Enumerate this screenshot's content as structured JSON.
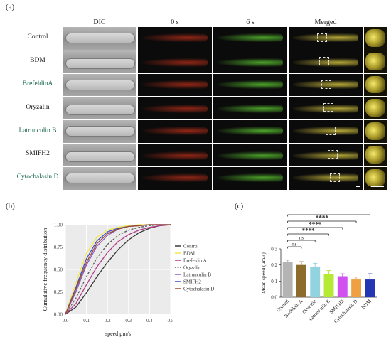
{
  "panels": {
    "a": "(a)",
    "b": "(b)",
    "c": "(c)"
  },
  "image_grid": {
    "columns": [
      "DIC",
      "0 s",
      "6 s",
      "Merged",
      ""
    ],
    "rows": [
      "Control",
      "BDM",
      "BrefeldinA",
      "Oryzalin",
      "Latrunculin B",
      "SMIFH2",
      "Cytochalasin D"
    ],
    "colors": {
      "zero_s": "#c0301a",
      "six_s": "#5ac030",
      "merged": "#d6c640",
      "row_label_accent": "#1d6b55"
    }
  },
  "chart_data": [
    {
      "type": "line",
      "panel": "(b)",
      "xlabel": "speed μm/s",
      "ylabel": "Cumulative frequency distribution",
      "xticks": [
        "0.0",
        "0.1",
        "0.2",
        "0.3",
        "0.4",
        "0.5"
      ],
      "yticks": [
        "0.00",
        "0.25",
        "0.50",
        "0.75",
        "1.00"
      ],
      "xlim": [
        0,
        0.5
      ],
      "ylim": [
        0,
        1
      ],
      "grid": true,
      "legend_position": "right",
      "x": [
        0,
        0.05,
        0.1,
        0.15,
        0.2,
        0.25,
        0.3,
        0.35,
        0.4,
        0.45,
        0.5
      ],
      "series": [
        {
          "name": "Control",
          "color": "#3a3a3a",
          "values": [
            0,
            0.08,
            0.24,
            0.42,
            0.58,
            0.72,
            0.83,
            0.91,
            0.96,
            0.99,
            1
          ]
        },
        {
          "name": "BDM",
          "color": "#f2e64a",
          "values": [
            0,
            0.35,
            0.68,
            0.86,
            0.94,
            0.97,
            0.99,
            1,
            1,
            1,
            1
          ]
        },
        {
          "name": "Brefeldin A",
          "color": "#b23a8c",
          "values": [
            0,
            0.12,
            0.33,
            0.53,
            0.69,
            0.81,
            0.89,
            0.94,
            0.97,
            0.99,
            1
          ]
        },
        {
          "name": "Oryzalin",
          "color": "#5a5a5a",
          "values": [
            0,
            0.18,
            0.42,
            0.63,
            0.78,
            0.88,
            0.94,
            0.97,
            0.99,
            1,
            1
          ]
        },
        {
          "name": "Latrunculin B",
          "color": "#8a5cc7",
          "values": [
            0,
            0.25,
            0.55,
            0.76,
            0.88,
            0.95,
            0.98,
            0.99,
            1,
            1,
            1
          ]
        },
        {
          "name": "SMIFH2",
          "color": "#4050c0",
          "values": [
            0,
            0.3,
            0.62,
            0.82,
            0.92,
            0.96,
            0.98,
            0.99,
            1,
            1,
            1
          ]
        },
        {
          "name": "Cytochalasin D",
          "color": "#a04a2a",
          "values": [
            0,
            0.28,
            0.58,
            0.79,
            0.9,
            0.95,
            0.98,
            0.99,
            1,
            1,
            1
          ]
        }
      ]
    },
    {
      "type": "bar",
      "panel": "(c)",
      "ylabel": "Mean speed (μm/s)",
      "ylim": [
        0,
        0.3
      ],
      "yticks": [
        "0.0",
        "0.1",
        "0.2",
        "0.3"
      ],
      "categories": [
        "Control",
        "Brefeldin A",
        "Oryzalin",
        "Latrunculin B",
        "SMIFH2",
        "Cytochalasin D",
        "BDM"
      ],
      "values": [
        0.22,
        0.2,
        0.19,
        0.145,
        0.13,
        0.11,
        0.11
      ],
      "errors": [
        0.01,
        0.02,
        0.02,
        0.02,
        0.015,
        0.015,
        0.035
      ],
      "colors": [
        "#b4b4b4",
        "#8c6c2c",
        "#92d3e0",
        "#b4ea34",
        "#d050f0",
        "#f0a040",
        "#2436b4"
      ],
      "significance": [
        {
          "compare": [
            "Control",
            "Brefeldin A"
          ],
          "label": "ns"
        },
        {
          "compare": [
            "Control",
            "Oryzalin"
          ],
          "label": "ns"
        },
        {
          "compare": [
            "Control",
            "Latrunculin B"
          ],
          "label": "****"
        },
        {
          "compare": [
            "Control",
            "SMIFH2"
          ],
          "label": "****"
        },
        {
          "compare": [
            "Control",
            "Cytochalasin D"
          ],
          "label": "****"
        },
        {
          "compare": [
            "Control",
            "BDM"
          ],
          "label": "****"
        }
      ]
    }
  ]
}
